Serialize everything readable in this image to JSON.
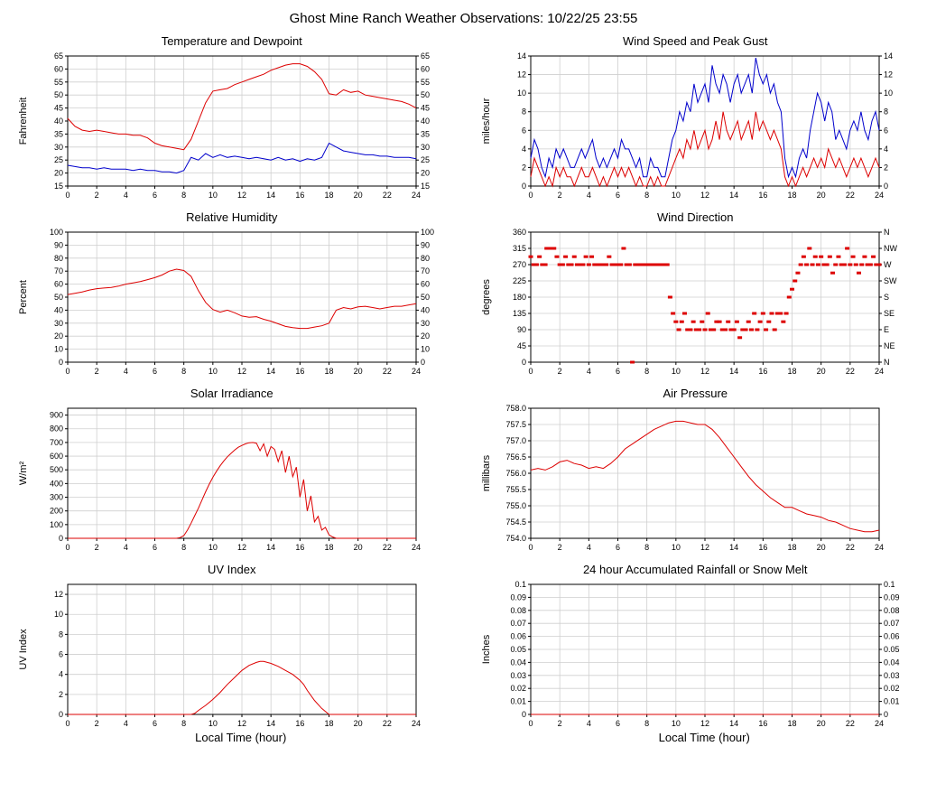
{
  "page_title": "Ghost Mine Ranch Weather Observations: 10/22/25 23:55",
  "x_axis": {
    "label": "Local Time (hour)",
    "min": 0,
    "max": 24,
    "tick_step": 2
  },
  "colors": {
    "primary_series": "#dd0000",
    "secondary_series": "#0000cc",
    "grid": "#cfcfcf",
    "axis": "#000000"
  },
  "chart_data": [
    {
      "title": "Temperature and Dewpoint",
      "type": "line",
      "ylabel": "Fahrenheit",
      "ylim": [
        15,
        65
      ],
      "ytick_step": 5,
      "right_axis": "mirror",
      "series": [
        {
          "name": "temperature",
          "color": "#dd0000",
          "x0": 0,
          "dx": 0.5,
          "y": [
            41,
            38,
            36.5,
            36,
            36.5,
            36,
            35.5,
            35,
            35,
            34.5,
            34.5,
            33.5,
            31.5,
            30.5,
            30,
            29.5,
            29,
            33,
            40,
            47,
            51.5,
            52,
            52.5,
            54,
            55,
            56,
            57,
            58,
            59.5,
            60.5,
            61.5,
            62,
            62,
            61,
            59,
            56,
            50.5,
            50,
            52,
            51,
            51.5,
            50,
            49.5,
            49,
            48.5,
            48,
            47.5,
            46.5,
            45
          ]
        },
        {
          "name": "dewpoint",
          "color": "#0000cc",
          "x0": 0,
          "dx": 0.5,
          "y": [
            23,
            22.5,
            22,
            22,
            21.5,
            22,
            21.5,
            21.5,
            21.5,
            21,
            21.5,
            21,
            21,
            20.5,
            20.5,
            20,
            21,
            26,
            25,
            27.5,
            26,
            27,
            26,
            26.5,
            26,
            25.5,
            26,
            25.5,
            25,
            26,
            25,
            25.5,
            24.5,
            25.5,
            25,
            26,
            31.5,
            30,
            28.5,
            28,
            27.5,
            27,
            27,
            26.5,
            26.5,
            26,
            26,
            26,
            25.5
          ]
        }
      ]
    },
    {
      "title": "Wind Speed and Peak Gust",
      "type": "line",
      "ylabel": "miles/hour",
      "ylim": [
        0,
        14
      ],
      "ytick_step": 2,
      "right_axis": "mirror",
      "series": [
        {
          "name": "wind-speed",
          "color": "#dd0000",
          "x0": 0,
          "dx": 0.25,
          "y": [
            1,
            3,
            2,
            1,
            0,
            1,
            0,
            2,
            1,
            2,
            1,
            1,
            0,
            1,
            2,
            1,
            1,
            2,
            1,
            0,
            1,
            0,
            1,
            2,
            1,
            2,
            1,
            2,
            1,
            0,
            1,
            0,
            0,
            1,
            0,
            1,
            0,
            0,
            1,
            2,
            3,
            4,
            3,
            5,
            4,
            6,
            4,
            5,
            6,
            4,
            5,
            7,
            5,
            8,
            6,
            5,
            6,
            7,
            5,
            6,
            7,
            5,
            8,
            6,
            7,
            6,
            5,
            6,
            5,
            4,
            1,
            0,
            1,
            0,
            1,
            2,
            1,
            2,
            3,
            2,
            3,
            2,
            4,
            3,
            2,
            3,
            2,
            1,
            2,
            3,
            2,
            3,
            2,
            1,
            2,
            3,
            2
          ]
        },
        {
          "name": "peak-gust",
          "color": "#0000cc",
          "x0": 0,
          "dx": 0.25,
          "y": [
            3,
            5,
            4,
            2,
            1,
            3,
            2,
            4,
            3,
            4,
            3,
            2,
            2,
            3,
            4,
            3,
            4,
            5,
            3,
            2,
            3,
            2,
            3,
            4,
            3,
            5,
            4,
            4,
            3,
            2,
            3,
            1,
            1,
            3,
            2,
            2,
            1,
            1,
            3,
            5,
            6,
            8,
            7,
            9,
            8,
            11,
            9,
            10,
            11,
            9,
            13,
            11,
            10,
            12,
            11,
            9,
            11,
            12,
            10,
            11,
            12,
            10,
            13.8,
            12,
            11,
            12,
            10,
            11,
            9,
            8,
            3,
            1,
            2,
            1,
            3,
            4,
            3,
            6,
            8,
            10,
            9,
            7,
            9,
            8,
            5,
            6,
            5,
            4,
            6,
            7,
            6,
            8,
            6,
            5,
            7,
            8,
            6
          ]
        }
      ]
    },
    {
      "title": "Relative Humidity",
      "type": "line",
      "ylabel": "Percent",
      "ylim": [
        0,
        100
      ],
      "ytick_step": 10,
      "right_axis": "mirror",
      "series": [
        {
          "name": "humidity",
          "color": "#dd0000",
          "x0": 0,
          "dx": 0.5,
          "y": [
            52,
            53,
            54,
            55.5,
            56.5,
            57,
            57.5,
            58.5,
            60,
            61,
            62,
            63.5,
            65,
            67,
            70,
            71.5,
            70.5,
            66,
            55,
            46,
            40.5,
            38.5,
            40,
            38,
            35.5,
            34.5,
            35,
            33,
            31.5,
            29.5,
            27.5,
            26.5,
            26,
            26,
            27,
            28,
            30,
            40,
            42,
            41,
            42.5,
            43,
            42,
            41,
            42,
            43,
            43,
            44,
            45
          ]
        }
      ]
    },
    {
      "title": "Wind Direction",
      "type": "scatter",
      "ylabel": "degrees",
      "ylim": [
        0,
        360
      ],
      "ytick_step": 45,
      "right_axis": [
        "N",
        "NE",
        "E",
        "SE",
        "S",
        "SW",
        "W",
        "NW",
        "N"
      ],
      "series": [
        {
          "name": "wind-direction",
          "color": "#dd0000",
          "x": [
            0.0,
            0.2,
            0.4,
            0.6,
            0.8,
            1.0,
            1.1,
            1.3,
            1.5,
            1.6,
            1.8,
            2.0,
            2.2,
            2.4,
            2.6,
            2.8,
            3.0,
            3.2,
            3.4,
            3.6,
            3.8,
            4.0,
            4.2,
            4.4,
            4.6,
            4.8,
            5.0,
            5.2,
            5.4,
            5.6,
            5.8,
            6.0,
            6.2,
            6.4,
            6.6,
            6.8,
            7.0,
            7.2,
            7.4,
            7.6,
            7.8,
            8.0,
            8.2,
            8.4,
            8.6,
            8.8,
            9.0,
            9.2,
            9.4,
            9.6,
            9.8,
            10.0,
            10.2,
            10.4,
            10.6,
            10.8,
            11.0,
            11.2,
            11.4,
            11.6,
            11.8,
            12.0,
            12.2,
            12.4,
            12.6,
            12.8,
            13.0,
            13.2,
            13.4,
            13.6,
            13.8,
            14.0,
            14.2,
            14.4,
            14.6,
            14.8,
            15.0,
            15.2,
            15.4,
            15.6,
            15.8,
            16.0,
            16.2,
            16.4,
            16.6,
            16.8,
            17.0,
            17.2,
            17.4,
            17.6,
            17.8,
            18.0,
            18.2,
            18.4,
            18.6,
            18.8,
            19.0,
            19.2,
            19.4,
            19.6,
            19.8,
            20.0,
            20.2,
            20.4,
            20.6,
            20.8,
            21.0,
            21.2,
            21.4,
            21.6,
            21.8,
            22.0,
            22.2,
            22.4,
            22.6,
            22.8,
            23.0,
            23.2,
            23.4,
            23.6,
            23.8,
            24.0
          ],
          "y": [
            292,
            270,
            270,
            292,
            270,
            270,
            315,
            315,
            315,
            315,
            292,
            270,
            270,
            292,
            270,
            270,
            292,
            270,
            270,
            270,
            292,
            270,
            292,
            270,
            270,
            270,
            270,
            270,
            292,
            270,
            270,
            270,
            270,
            315,
            270,
            270,
            0,
            270,
            270,
            270,
            270,
            270,
            270,
            270,
            270,
            270,
            270,
            270,
            270,
            180,
            135,
            112,
            90,
            112,
            135,
            90,
            90,
            112,
            90,
            90,
            112,
            90,
            135,
            90,
            90,
            112,
            112,
            90,
            90,
            112,
            90,
            90,
            112,
            68,
            90,
            90,
            112,
            90,
            135,
            90,
            112,
            135,
            90,
            112,
            135,
            90,
            135,
            135,
            112,
            135,
            180,
            202,
            225,
            247,
            270,
            292,
            270,
            315,
            270,
            292,
            270,
            292,
            270,
            270,
            292,
            247,
            270,
            292,
            270,
            270,
            315,
            270,
            292,
            270,
            247,
            270,
            292,
            270,
            270,
            292,
            270,
            270
          ]
        }
      ]
    },
    {
      "title": "Solar Irradiance",
      "type": "line",
      "ylabel": "W/m²",
      "ylim": [
        0,
        950
      ],
      "ytick_step": 100,
      "ytick_max": 900,
      "series": [
        {
          "name": "solar-irradiance",
          "color": "#dd0000",
          "x": [
            0,
            7.5,
            7.75,
            8,
            8.25,
            8.5,
            8.75,
            9,
            9.25,
            9.5,
            9.75,
            10,
            10.25,
            10.5,
            10.75,
            11,
            11.25,
            11.5,
            11.75,
            12,
            12.25,
            12.5,
            12.75,
            13,
            13.25,
            13.5,
            13.75,
            14,
            14.25,
            14.5,
            14.75,
            15,
            15.25,
            15.5,
            15.75,
            16,
            16.25,
            16.5,
            16.75,
            17,
            17.25,
            17.5,
            17.75,
            18,
            18.25,
            18.5,
            24
          ],
          "y": [
            0,
            0,
            5,
            20,
            60,
            110,
            165,
            220,
            280,
            340,
            395,
            445,
            490,
            530,
            565,
            595,
            620,
            645,
            665,
            678,
            690,
            698,
            700,
            695,
            640,
            690,
            600,
            670,
            650,
            560,
            640,
            480,
            600,
            450,
            520,
            300,
            430,
            200,
            310,
            120,
            160,
            60,
            80,
            25,
            10,
            0,
            0
          ]
        }
      ]
    },
    {
      "title": "Air Pressure",
      "type": "line",
      "ylabel": "millibars",
      "ylim": [
        754.0,
        758.0
      ],
      "ytick_step": 0.5,
      "ytick_format": "fixed1",
      "series": [
        {
          "name": "air-pressure",
          "color": "#dd0000",
          "x0": 0,
          "dx": 0.5,
          "y": [
            756.1,
            756.15,
            756.1,
            756.2,
            756.35,
            756.4,
            756.3,
            756.25,
            756.15,
            756.2,
            756.15,
            756.3,
            756.5,
            756.75,
            756.9,
            757.05,
            757.2,
            757.35,
            757.45,
            757.55,
            757.6,
            757.6,
            757.55,
            757.5,
            757.5,
            757.35,
            757.1,
            756.8,
            756.5,
            756.2,
            755.9,
            755.65,
            755.45,
            755.25,
            755.1,
            754.95,
            754.95,
            754.85,
            754.75,
            754.7,
            754.65,
            754.55,
            754.5,
            754.4,
            754.3,
            754.25,
            754.2,
            754.2,
            754.25
          ]
        }
      ]
    },
    {
      "title": "UV Index",
      "type": "line",
      "ylabel": "UV Index",
      "ylim": [
        0,
        13
      ],
      "ytick_step": 2,
      "ytick_max": 12,
      "series": [
        {
          "name": "uv-index",
          "color": "#dd0000",
          "x": [
            0,
            8.5,
            8.75,
            9,
            9.5,
            10,
            10.5,
            11,
            11.5,
            12,
            12.5,
            13,
            13.25,
            13.5,
            14,
            14.5,
            15,
            15.5,
            16,
            16.25,
            16.5,
            17,
            17.25,
            17.5,
            18,
            24
          ],
          "y": [
            0,
            0,
            0.1,
            0.4,
            0.9,
            1.5,
            2.2,
            3,
            3.7,
            4.4,
            4.9,
            5.2,
            5.3,
            5.3,
            5.1,
            4.8,
            4.4,
            4,
            3.4,
            3,
            2.4,
            1.4,
            1,
            0.6,
            0,
            0
          ]
        }
      ]
    },
    {
      "title": "24 hour Accumulated Rainfall or Snow Melt",
      "type": "line",
      "ylabel": "Inches",
      "ylim": [
        0,
        0.1
      ],
      "ytick_step": 0.01,
      "right_axis": "mirror",
      "series": [
        {
          "name": "rainfall",
          "color": "#dd0000",
          "x": [
            0,
            24
          ],
          "y": [
            0,
            0
          ]
        }
      ]
    }
  ]
}
